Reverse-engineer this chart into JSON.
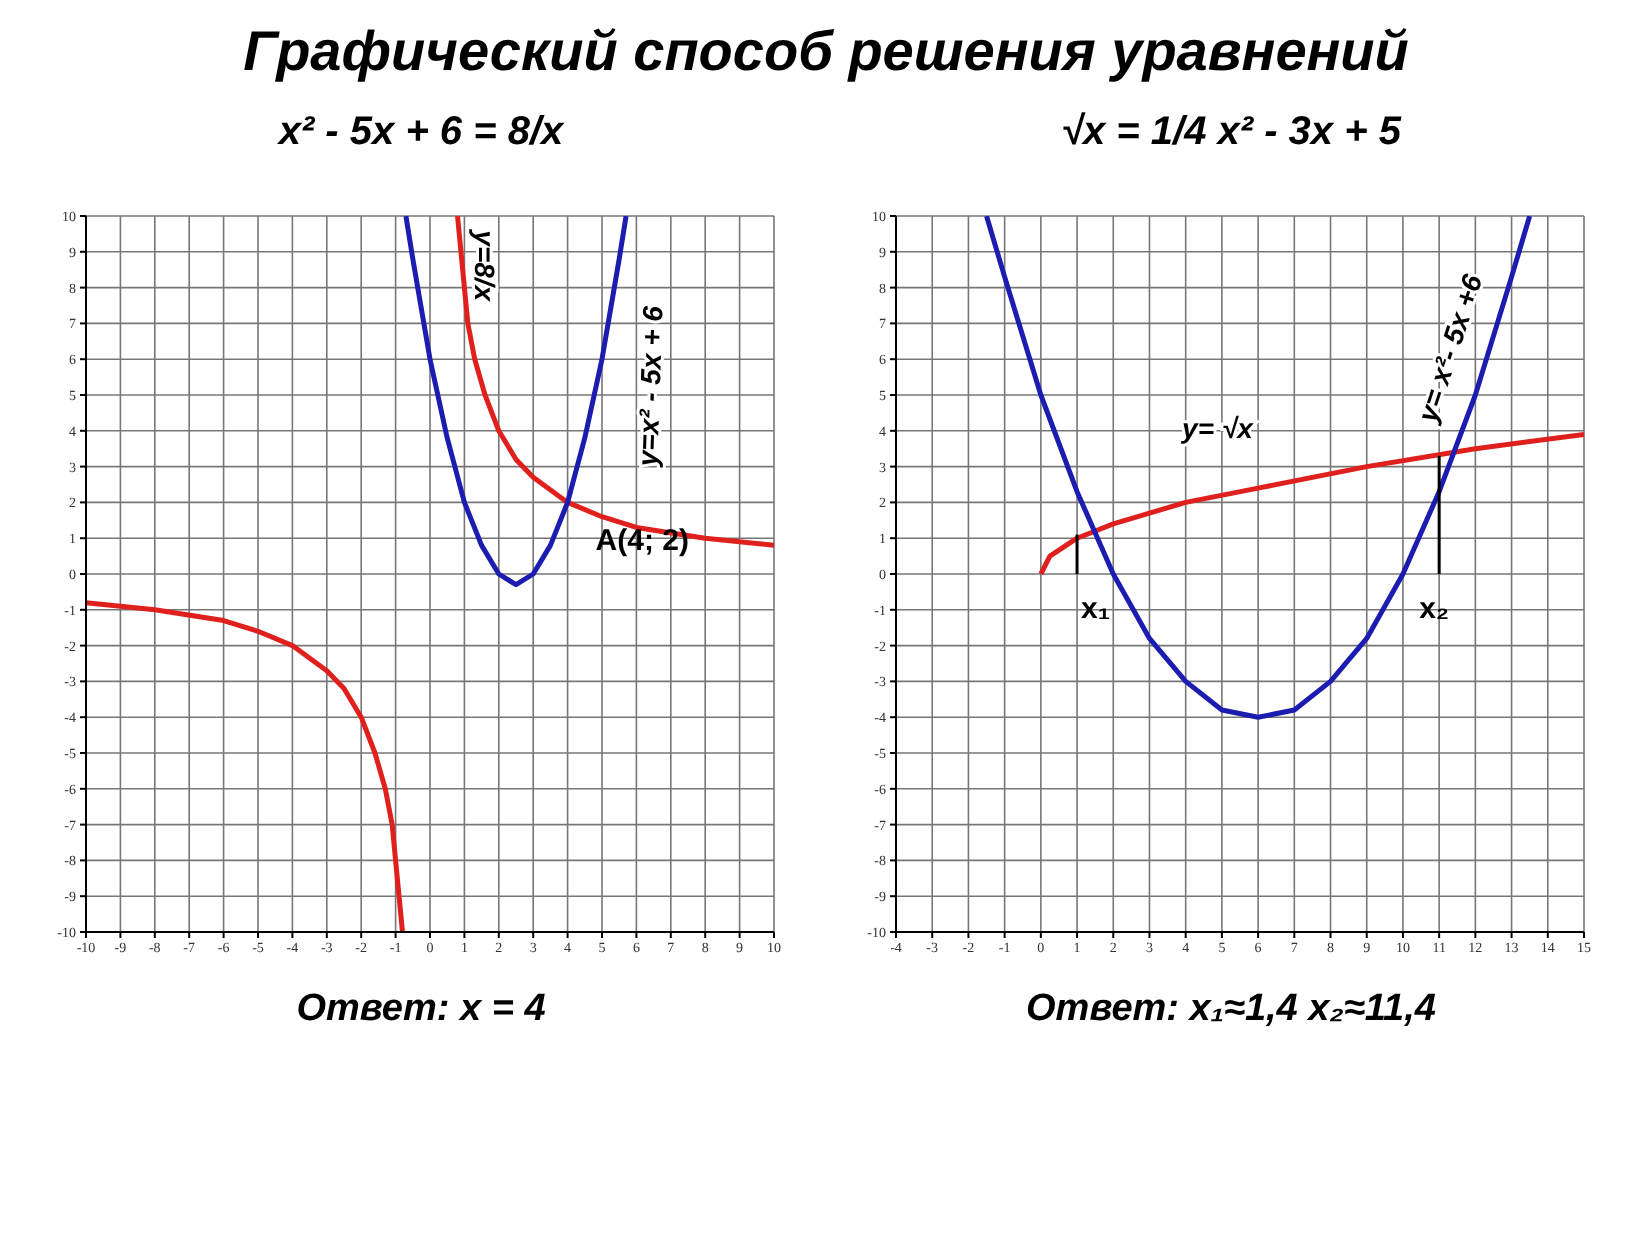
{
  "chart_data": [
    {
      "type": "line",
      "title": "Графический способ решения уравнений",
      "subtitle": "x² - 5x + 6 = 8/x",
      "xlim": [
        -10,
        10
      ],
      "ylim": [
        -10,
        10
      ],
      "xticks": [
        -10,
        -9,
        -8,
        -7,
        -6,
        -5,
        -4,
        -3,
        -2,
        -1,
        0,
        1,
        2,
        3,
        4,
        5,
        6,
        7,
        8,
        9,
        10
      ],
      "yticks": [
        -10,
        -9,
        -8,
        -7,
        -6,
        -5,
        -4,
        -3,
        -2,
        -1,
        0,
        1,
        2,
        3,
        4,
        5,
        6,
        7,
        8,
        9,
        10
      ],
      "grid": true,
      "marker": "none",
      "line_style": "solid",
      "series": [
        {
          "name": "y=8/x",
          "color": "#e0201c",
          "x": [
            -10,
            -8,
            -6,
            -5,
            -4,
            -3,
            -2.5,
            -2,
            -1.6,
            -1.3,
            -1.1,
            -1,
            -0.9,
            -0.8,
            0,
            0.8,
            0.9,
            1,
            1.1,
            1.3,
            1.6,
            2,
            2.5,
            3,
            4,
            5,
            6,
            8,
            10
          ],
          "values": [
            -0.8,
            -1,
            -1.3,
            -1.6,
            -2,
            -2.7,
            -3.2,
            -4,
            -5,
            -6,
            -7,
            -8,
            -9,
            -10,
            null,
            10,
            9,
            8,
            7,
            6,
            5,
            4,
            3.2,
            2.7,
            2,
            1.6,
            1.3,
            1,
            0.8
          ]
        },
        {
          "name": "y=x² - 5x + 6",
          "color": "#1c1cb0",
          "x": [
            -0.7,
            -0.5,
            0,
            0.5,
            1,
            1.5,
            2,
            2.5,
            3,
            3.5,
            4,
            4.5,
            5,
            5.5,
            5.7
          ],
          "values": [
            10,
            8.8,
            6,
            3.8,
            2,
            0.8,
            0,
            -0.3,
            0,
            0.8,
            2,
            3.8,
            6,
            8.8,
            10
          ]
        }
      ],
      "annotations": [
        {
          "text": "A(4; 2)",
          "x": 4,
          "y": 2
        },
        "Ответ: x = 4"
      ]
    },
    {
      "type": "line",
      "subtitle": "√x = 1/4 x² - 3x + 5",
      "xlim": [
        -4,
        15
      ],
      "ylim": [
        -10,
        10
      ],
      "xticks": [
        -4,
        -3,
        -2,
        -1,
        0,
        1,
        2,
        3,
        4,
        5,
        6,
        7,
        8,
        9,
        10,
        11,
        12,
        13,
        14,
        15
      ],
      "yticks": [
        -10,
        -9,
        -8,
        -7,
        -6,
        -5,
        -4,
        -3,
        -2,
        -1,
        0,
        1,
        2,
        3,
        4,
        5,
        6,
        7,
        8,
        9,
        10
      ],
      "grid": true,
      "marker": "none",
      "line_style": "solid",
      "series": [
        {
          "name": "y= √x",
          "color": "#e0201c",
          "x": [
            0,
            0.25,
            1,
            2,
            3,
            4,
            6,
            9,
            12,
            15
          ],
          "values": [
            0,
            0.5,
            1,
            1.4,
            1.7,
            2,
            2.4,
            3,
            3.5,
            3.9
          ]
        },
        {
          "name": "y= x²- 5x +6",
          "color": "#1c1cb0",
          "x": [
            -1.5,
            -1,
            0,
            1,
            2,
            3,
            4,
            5,
            6,
            7,
            8,
            9,
            10,
            11,
            12,
            13,
            13.5
          ],
          "values": [
            10,
            8.3,
            5,
            2.3,
            0,
            -1.8,
            -3,
            -3.8,
            -4,
            -3.8,
            -3,
            -1.8,
            0,
            2.3,
            5,
            8.3,
            10
          ]
        },
        {
          "color": "#000000",
          "x": [
            1,
            1
          ],
          "values": [
            0,
            1.1
          ]
        },
        {
          "color": "#000000",
          "x": [
            11,
            11
          ],
          "values": [
            0,
            3.3
          ]
        }
      ],
      "annotations": [
        {
          "text": "x₁",
          "x": 1,
          "y": 0
        },
        {
          "text": "x₂",
          "x": 11,
          "y": 0
        },
        "Ответ: x₁≈1,4  x₂≈11,4"
      ]
    }
  ]
}
